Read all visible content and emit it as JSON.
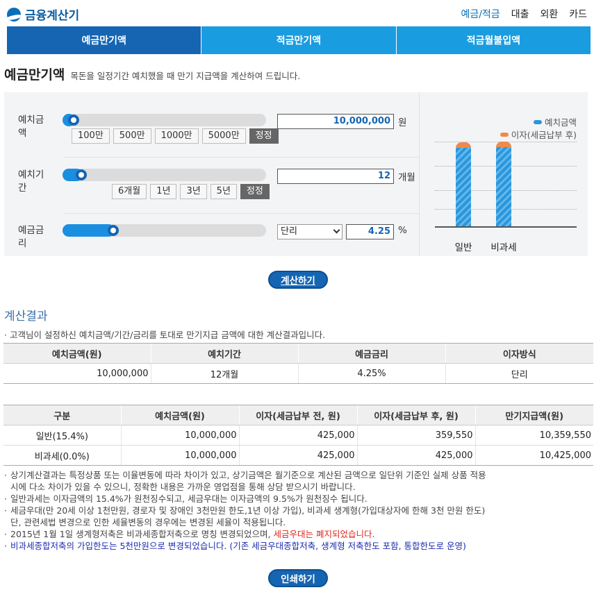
{
  "header": {
    "logo_icon": "logo-swirl-icon",
    "logo_text": "금융계산기",
    "nav": [
      "예금/적금",
      "대출",
      "외환",
      "카드"
    ]
  },
  "tabs": [
    "예금만기액",
    "적금만기액",
    "적금월불입액"
  ],
  "page": {
    "title": "예금만기액",
    "description": "목돈을 일정기간 예치했을 때 만기 지급액을 계산하여 드립니다."
  },
  "calc": {
    "deposit": {
      "label_line1": "예치금",
      "label_line2": "액",
      "slider_fraction": 0.02,
      "chips": [
        "100만",
        "500만",
        "1000만",
        "5000만"
      ],
      "reset": "정정",
      "value": "10,000,000",
      "unit": "원"
    },
    "period": {
      "label_line1": "예치기",
      "label_line2": "간",
      "slider_fraction": 0.06,
      "chips": [
        "6개월",
        "1년",
        "3년",
        "5년"
      ],
      "reset": "정정",
      "value": "12",
      "unit": "개월"
    },
    "rate": {
      "label_line1": "예금금",
      "label_line2": "리",
      "slider_fraction": 0.23,
      "method": "단리",
      "value": "4.25",
      "unit": "%"
    }
  },
  "chart_data": {
    "type": "bar",
    "categories": [
      "일반",
      "비과세"
    ],
    "series": [
      {
        "name": "예치금액",
        "values": [
          10000000,
          10000000
        ],
        "color": "#2a96dc"
      },
      {
        "name": "이자(세금납부 후)",
        "values": [
          359550,
          425000
        ],
        "color": "#f08a4b"
      }
    ],
    "stacked": true,
    "legend": "top-right",
    "grid": true
  },
  "buttons": {
    "calculate": "계산하기",
    "print": "인쇄하기"
  },
  "results": {
    "title": "계산결과",
    "note": "· 고객님이 설정하신 예치금액/기간/금리를 토대로 만기지급 금액에 대한 계산결과입니다.",
    "summary": {
      "headers": [
        "예치금액(원)",
        "예치기간",
        "예금금리",
        "이자방식"
      ],
      "row": [
        "10,000,000",
        "12개월",
        "4.25%",
        "단리"
      ]
    },
    "detail": {
      "headers": [
        "구분",
        "예치금액(원)",
        "이자(세금납부 전, 원)",
        "이자(세금납부 후, 원)",
        "만기지급액(원)"
      ],
      "rows": [
        [
          "일반(15.4%)",
          "10,000,000",
          "425,000",
          "359,550",
          "10,359,550"
        ],
        [
          "비과세(0.0%)",
          "10,000,000",
          "425,000",
          "425,000",
          "10,425,000"
        ]
      ]
    },
    "notes": {
      "n1a": "상기계산결과는 특정상품 또는 이율변동에 따라 차이가 있고, 상기금액은 월기준으로 계산된 금액으로 일단위 기준인 실제 상품 적용",
      "n1b": "시에 다소 차이가 있을 수 있으니, 정확한 내용은 가까운 영업점을 통해 상담 받으시기 바랍니다.",
      "n2": "일반과세는 이자금액의 15.4%가 원천징수되고, 세금우대는 이자금액의 9.5%가 원천징수 됩니다.",
      "n3a": "세금우대(만 20세 이상 1천만원, 경로자 및 장애인 3천만원 한도,1년 이상 가입), 비과세 생계형(가입대상자에 한해 3천 만원 한도)",
      "n3b": "단, 관련세법 변경으로 인한 세율변동의 경우에는 변경된 세율이 적용됩니다.",
      "n4a": "2015년 1월 1일 생계형저축은 비과세종합저축으로 명칭 변경되었으며, ",
      "n4b": "세금우대는 폐지되었습니다.",
      "n5": "비과세종합저축의 가입한도는 5천만원으로 변경되었습니다. (기존 세금우대종합저축, 생계형 저축한도 포함, 통합한도로 운영)"
    }
  }
}
